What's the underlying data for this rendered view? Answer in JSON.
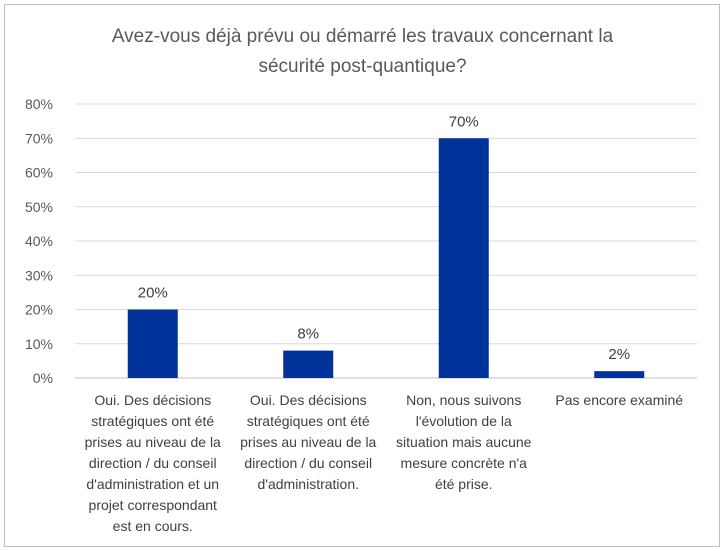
{
  "chart_data": {
    "type": "bar",
    "title": "Avez-vous déjà prévu ou démarré les travaux concernant la sécurité post-quantique?",
    "title_lines": [
      "Avez-vous déjà prévu ou démarré les travaux concernant la",
      "sécurité post-quantique?"
    ],
    "categories": [
      "Oui. Des décisions stratégiques ont été prises au niveau de la direction / du conseil d'administration et un projet correspondant est en cours.",
      "Oui. Des décisions stratégiques ont été prises au niveau de la direction / du conseil d'administration.",
      "Non, nous suivons l'évolution de la situation mais aucune mesure concrète n'a été prise.",
      "Pas encore examiné"
    ],
    "category_lines": [
      [
        "Oui. Des décisions",
        "stratégiques ont été",
        "prises au niveau de la",
        "direction / du conseil",
        "d'administration et un",
        "projet correspondant",
        "est en cours."
      ],
      [
        "Oui. Des décisions",
        "stratégiques ont été",
        "prises au niveau de la",
        "direction / du conseil",
        "d'administration."
      ],
      [
        "Non, nous suivons",
        "l'évolution de la",
        "situation mais aucune",
        "mesure concrète n'a",
        "été prise."
      ],
      [
        "Pas encore examiné"
      ]
    ],
    "values": [
      20,
      8,
      70,
      2
    ],
    "data_labels": [
      "20%",
      "8%",
      "70%",
      "2%"
    ],
    "ylim": [
      0,
      80
    ],
    "yticks": [
      "0%",
      "10%",
      "20%",
      "30%",
      "40%",
      "50%",
      "60%",
      "70%",
      "80%"
    ],
    "xlabel": "",
    "ylabel": "",
    "grid": true,
    "bar_color": "#003399"
  }
}
